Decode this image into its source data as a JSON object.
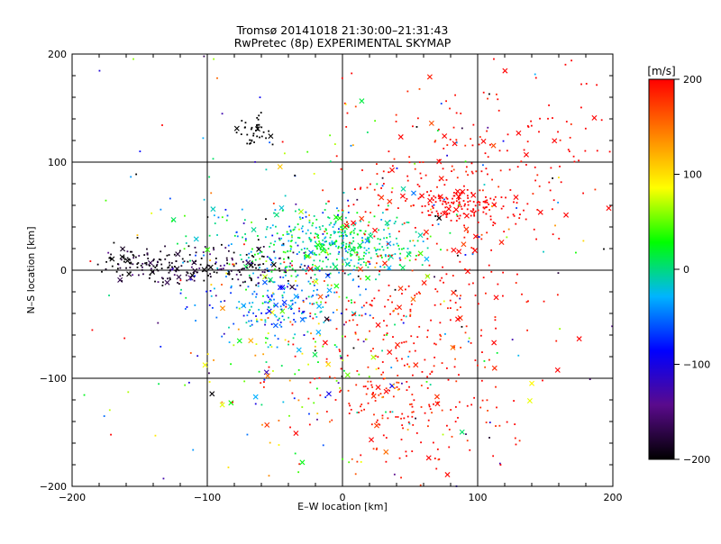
{
  "chart_data": {
    "type": "scatter",
    "title": "Tromsø 20141018 21:30:00–21:31:43",
    "subtitle": "RwPretec (8p) EXPERIMENTAL SKYMAP",
    "xlabel": "E–W location [km]",
    "ylabel": "N–S location [km]",
    "xlim": [
      -200,
      200
    ],
    "ylim": [
      -200,
      200
    ],
    "xticks": [
      -200,
      -100,
      0,
      100,
      200
    ],
    "yticks": [
      -200,
      -100,
      0,
      100,
      200
    ],
    "xtick_labels": [
      "−200",
      "−100",
      "0",
      "100",
      "200"
    ],
    "ytick_labels": [
      "−200",
      "−100",
      "0",
      "100",
      "200"
    ],
    "grid": true,
    "colorbar": {
      "label": "[m/s]",
      "min": -200,
      "max": 200,
      "ticks": [
        200,
        100,
        0,
        -100,
        -200
      ],
      "tick_labels": [
        "200",
        "100",
        "0",
        "−100",
        "−200"
      ],
      "colormap": [
        "#000000",
        "#5a0a8c",
        "#0000ff",
        "#00b4ff",
        "#00ff00",
        "#ffff00",
        "#ff8000",
        "#ff0000"
      ]
    },
    "clusters": [
      {
        "cx": 0,
        "cy": 25,
        "sx": 28,
        "sy": 14,
        "n": 330,
        "v": 5,
        "vs": 28
      },
      {
        "cx": -45,
        "cy": 12,
        "sx": 38,
        "sy": 28,
        "n": 220,
        "v": -20,
        "vs": 45
      },
      {
        "cx": -90,
        "cy": 3,
        "sx": 30,
        "sy": 10,
        "n": 160,
        "v": -185,
        "vs": 25
      },
      {
        "cx": -145,
        "cy": 5,
        "sx": 16,
        "sy": 9,
        "n": 100,
        "v": -195,
        "vs": 15
      },
      {
        "cx": 85,
        "cy": 60,
        "sx": 18,
        "sy": 8,
        "n": 130,
        "v": 200,
        "vs": 0
      },
      {
        "cx": 70,
        "cy": 85,
        "sx": 45,
        "sy": 40,
        "n": 170,
        "v": 195,
        "vs": 12
      },
      {
        "cx": 55,
        "cy": -65,
        "sx": 42,
        "sy": 55,
        "n": 300,
        "v": 195,
        "vs": 12
      },
      {
        "cx": 30,
        "cy": -125,
        "sx": 30,
        "sy": 28,
        "n": 90,
        "v": 190,
        "vs": 18
      },
      {
        "cx": -30,
        "cy": -80,
        "sx": 40,
        "sy": 55,
        "n": 140,
        "v": 40,
        "vs": 90
      },
      {
        "cx": -45,
        "cy": -35,
        "sx": 25,
        "sy": 14,
        "n": 120,
        "v": -50,
        "vs": 30
      },
      {
        "cx": -65,
        "cy": 128,
        "sx": 7,
        "sy": 7,
        "n": 40,
        "v": -200,
        "vs": 0
      },
      {
        "cx": 150,
        "cy": 110,
        "sx": 30,
        "sy": 50,
        "n": 70,
        "v": 200,
        "vs": 0
      },
      {
        "cx": 0,
        "cy": 0,
        "sx": 120,
        "sy": 115,
        "n": 280,
        "v": 0,
        "vs": 150
      }
    ],
    "cross_fraction": 0.08
  }
}
